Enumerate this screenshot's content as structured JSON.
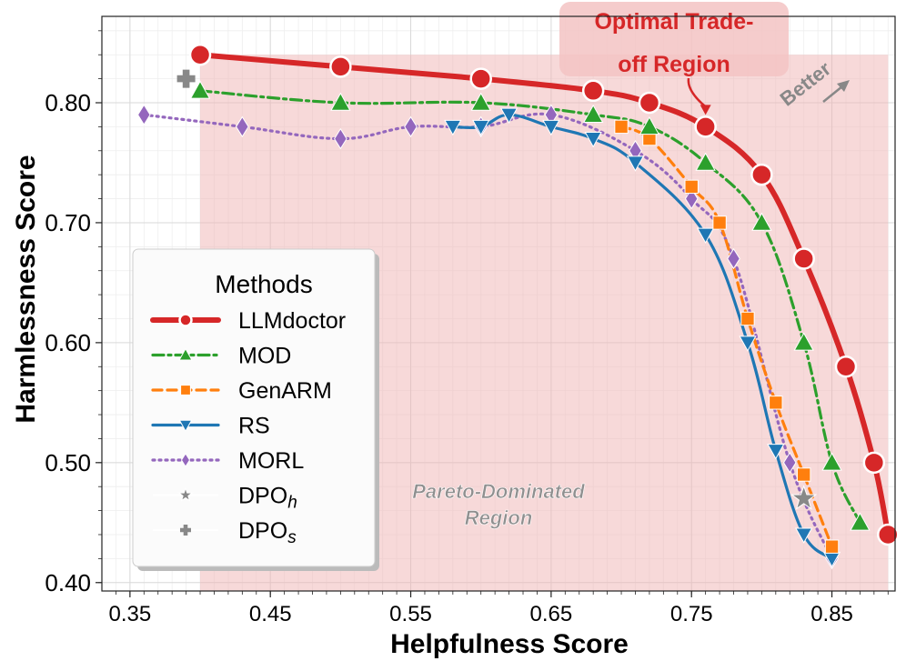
{
  "chart_data": {
    "type": "line",
    "xlabel": "Helpfulness Score",
    "ylabel": "Harmlessness Score",
    "xlim": [
      0.33,
      0.895
    ],
    "ylim": [
      0.393,
      0.872
    ],
    "xticks": [
      "0.35",
      "0.45",
      "0.55",
      "0.65",
      "0.75",
      "0.85"
    ],
    "yticks": [
      "0.40",
      "0.50",
      "0.60",
      "0.70",
      "0.80"
    ],
    "grid": true,
    "legend_title": "Methods",
    "legend_position": "center-left",
    "series": [
      {
        "name": "LLMdoctor",
        "color": "#d62728",
        "marker": "circle",
        "linestyle": "solid",
        "x": [
          0.4,
          0.5,
          0.6,
          0.68,
          0.72,
          0.76,
          0.8,
          0.83,
          0.86,
          0.88,
          0.89
        ],
        "y": [
          0.84,
          0.83,
          0.82,
          0.81,
          0.8,
          0.78,
          0.74,
          0.67,
          0.58,
          0.5,
          0.44
        ]
      },
      {
        "name": "MOD",
        "color": "#2ca02c",
        "marker": "triangle-up",
        "linestyle": "dashdot",
        "x": [
          0.4,
          0.5,
          0.6,
          0.68,
          0.72,
          0.76,
          0.8,
          0.83,
          0.85,
          0.87
        ],
        "y": [
          0.81,
          0.8,
          0.8,
          0.79,
          0.78,
          0.75,
          0.7,
          0.6,
          0.5,
          0.45
        ]
      },
      {
        "name": "GenARM",
        "color": "#ff7f0e",
        "marker": "square",
        "linestyle": "dashed",
        "x": [
          0.7,
          0.72,
          0.75,
          0.77,
          0.79,
          0.81,
          0.83,
          0.85
        ],
        "y": [
          0.78,
          0.77,
          0.73,
          0.7,
          0.62,
          0.55,
          0.49,
          0.43
        ]
      },
      {
        "name": "RS",
        "color": "#1f77b4",
        "marker": "triangle-down",
        "linestyle": "solid",
        "x": [
          0.58,
          0.6,
          0.62,
          0.65,
          0.68,
          0.71,
          0.76,
          0.79,
          0.81,
          0.83,
          0.85
        ],
        "y": [
          0.78,
          0.78,
          0.79,
          0.78,
          0.77,
          0.75,
          0.69,
          0.6,
          0.51,
          0.44,
          0.42
        ]
      },
      {
        "name": "MORL",
        "color": "#9467bd",
        "marker": "diamond",
        "linestyle": "dotted",
        "x": [
          0.36,
          0.43,
          0.5,
          0.55,
          0.6,
          0.65,
          0.71,
          0.75,
          0.78,
          0.82,
          0.85
        ],
        "y": [
          0.79,
          0.78,
          0.77,
          0.78,
          0.78,
          0.79,
          0.76,
          0.72,
          0.67,
          0.5,
          0.42
        ]
      },
      {
        "name": "DPO",
        "sub": "h",
        "color": "#888888",
        "marker": "star",
        "linestyle": "none",
        "x": [
          0.83
        ],
        "y": [
          0.47
        ]
      },
      {
        "name": "DPO",
        "sub": "s",
        "color": "#888888",
        "marker": "plus",
        "linestyle": "none",
        "x": [
          0.39
        ],
        "y": [
          0.82
        ]
      }
    ],
    "annotations": {
      "optimal_line1": "Optimal Trade-",
      "optimal_line2": "off Region",
      "better": "Better",
      "pareto_line1": "Pareto-Dominated",
      "pareto_line2": "Region"
    },
    "region_x": [
      0.4,
      0.89
    ],
    "optimal_arrow_target": [
      0.76,
      0.78
    ]
  }
}
